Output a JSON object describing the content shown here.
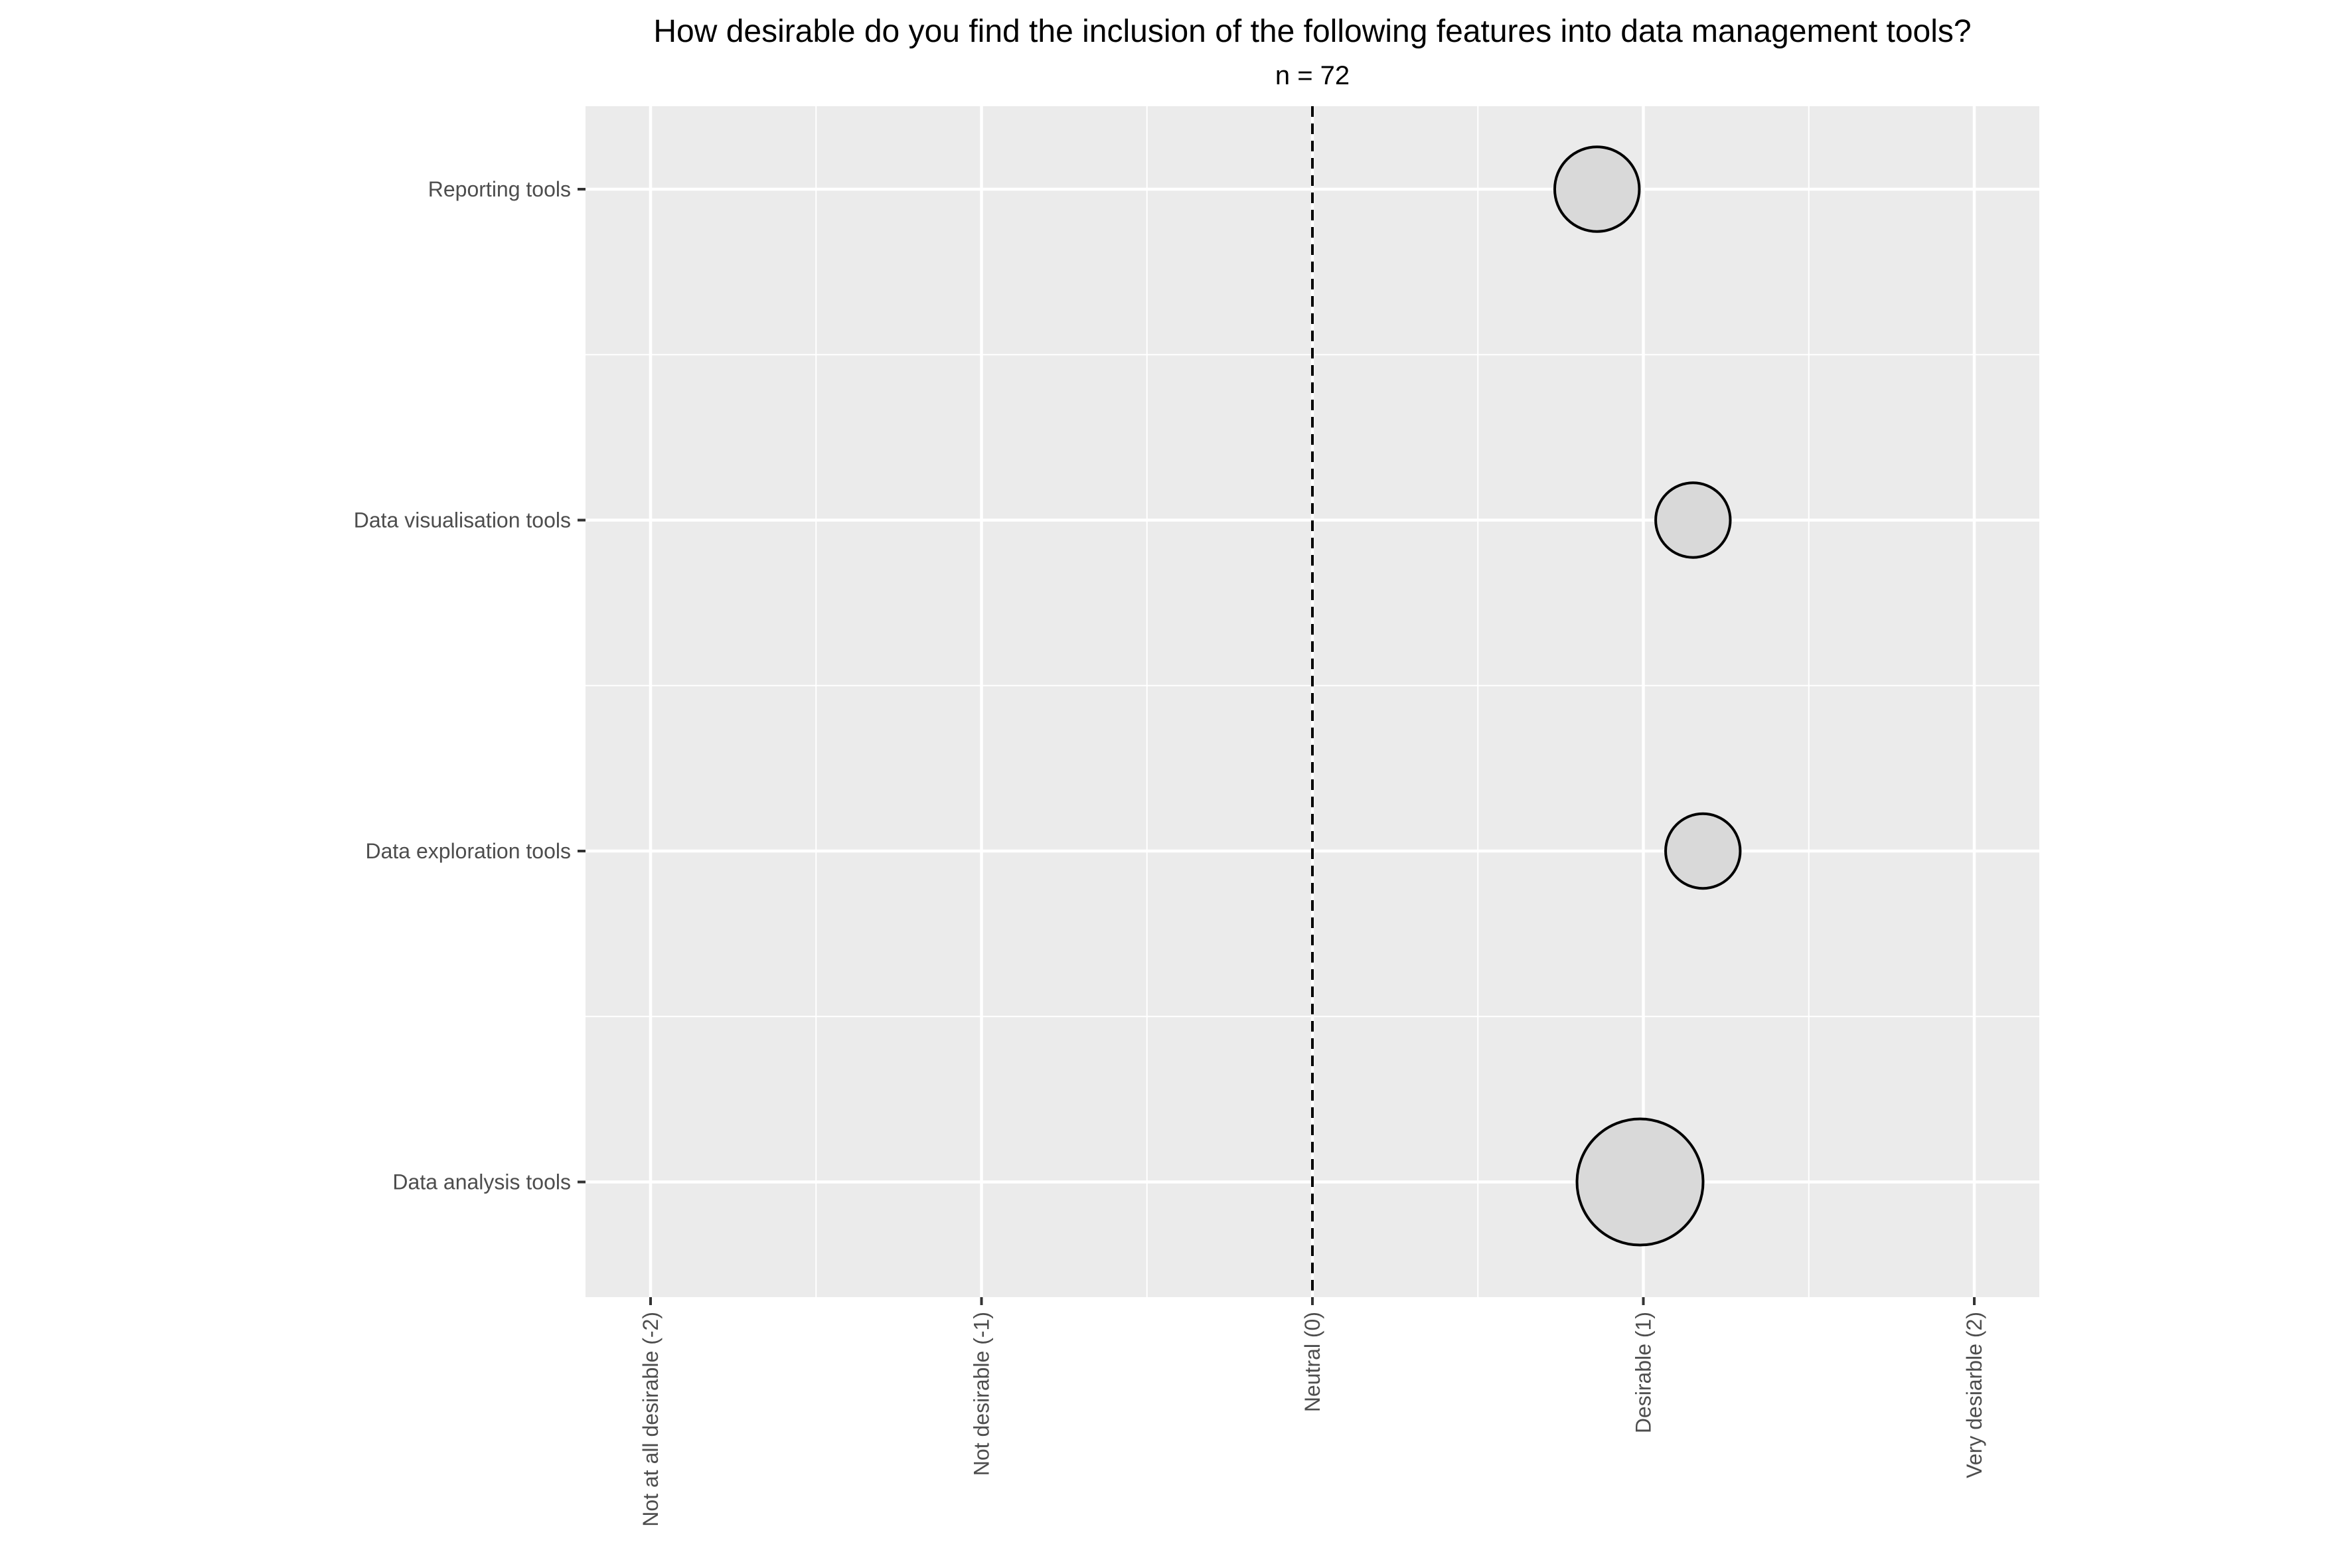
{
  "chart_data": {
    "type": "scatter",
    "title": "How desirable do you find the inclusion of the following features into data management tools?",
    "subtitle": "n = 72",
    "xlabel": "",
    "ylabel": "",
    "xlim": [
      -2.5,
      2.2
    ],
    "x_ticks": [
      {
        "value": -2,
        "label": "Not at all desirable (-2)"
      },
      {
        "value": -1,
        "label": "Not desirable (-1)"
      },
      {
        "value": 0,
        "label": "Neutral (0)"
      },
      {
        "value": 1,
        "label": "Desirable (1)"
      },
      {
        "value": 2,
        "label": "Very desiarble (2)"
      }
    ],
    "categories": [
      "Reporting tools",
      "Data visualisation tools",
      "Data exploration tools",
      "Data analysis tools"
    ],
    "reference_line": {
      "x": 0,
      "style": "dashed"
    },
    "points": [
      {
        "category": "Reporting tools",
        "x": 0.86,
        "relative_size": 0.45
      },
      {
        "category": "Data visualisation tools",
        "x": 1.15,
        "relative_size": 0.35
      },
      {
        "category": "Data exploration tools",
        "x": 1.18,
        "relative_size": 0.35
      },
      {
        "category": "Data analysis tools",
        "x": 0.99,
        "relative_size": 1.0
      }
    ],
    "grid": true,
    "legend": "none",
    "colors": {
      "panel": "#ebebeb",
      "grid": "#ffffff",
      "point_fill": "#d9d9d9",
      "point_stroke": "#000000"
    }
  }
}
